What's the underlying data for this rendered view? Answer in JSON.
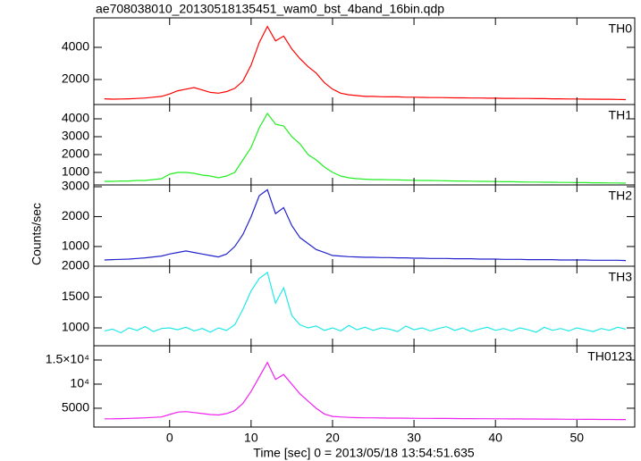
{
  "chart_data": [
    {
      "type": "line",
      "title": "ae708038010_20130518135451_wam0_bst_4band_16bin.qdp",
      "label": "TH0",
      "color": "#ff0000",
      "x": [
        -8,
        -7,
        -6,
        -5,
        -4,
        -3,
        -2,
        -1,
        0,
        1,
        2,
        3,
        4,
        5,
        6,
        7,
        8,
        9,
        10,
        11,
        12,
        13,
        14,
        15,
        16,
        17,
        18,
        19,
        20,
        21,
        22,
        23,
        24,
        25,
        26,
        27,
        28,
        29,
        30,
        31,
        32,
        33,
        34,
        35,
        36,
        37,
        38,
        39,
        40,
        41,
        42,
        43,
        44,
        45,
        46,
        47,
        48,
        49,
        50,
        51,
        52,
        53,
        54,
        55,
        56
      ],
      "values": [
        800,
        780,
        790,
        800,
        820,
        850,
        900,
        950,
        1100,
        1300,
        1400,
        1500,
        1350,
        1200,
        1150,
        1250,
        1450,
        1900,
        2900,
        4300,
        5300,
        4400,
        4700,
        3900,
        3300,
        2800,
        2400,
        1800,
        1400,
        1150,
        1050,
        1000,
        950,
        950,
        930,
        920,
        920,
        900,
        900,
        890,
        880,
        880,
        870,
        860,
        860,
        850,
        850,
        840,
        840,
        830,
        830,
        820,
        820,
        810,
        810,
        800,
        800,
        790,
        790,
        780,
        780,
        770,
        770,
        760,
        750
      ],
      "xlim": [
        -9.3,
        57.1
      ],
      "ylim": [
        444,
        5833
      ],
      "yticks": [
        2000,
        4000
      ]
    },
    {
      "type": "line",
      "label": "TH1",
      "color": "#22ee22",
      "x": [
        -8,
        -7,
        -6,
        -5,
        -4,
        -3,
        -2,
        -1,
        0,
        1,
        2,
        3,
        4,
        5,
        6,
        7,
        8,
        9,
        10,
        11,
        12,
        13,
        14,
        15,
        16,
        17,
        18,
        19,
        20,
        21,
        22,
        23,
        24,
        25,
        26,
        27,
        28,
        29,
        30,
        31,
        32,
        33,
        34,
        35,
        36,
        37,
        38,
        39,
        40,
        41,
        42,
        43,
        44,
        45,
        46,
        47,
        48,
        49,
        50,
        51,
        52,
        53,
        54,
        55,
        56
      ],
      "values": [
        500,
        500,
        520,
        520,
        550,
        550,
        600,
        650,
        900,
        1000,
        1000,
        950,
        850,
        800,
        700,
        800,
        1000,
        1700,
        2400,
        3500,
        4300,
        3700,
        3600,
        3000,
        2600,
        2000,
        1700,
        1300,
        1000,
        800,
        700,
        650,
        620,
        600,
        600,
        590,
        580,
        570,
        560,
        550,
        550,
        540,
        530,
        520,
        520,
        510,
        500,
        500,
        490,
        480,
        480,
        470,
        460,
        460,
        450,
        450,
        440,
        440,
        430,
        430,
        420,
        420,
        410,
        410,
        400
      ],
      "xlim": [
        -9.3,
        57.1
      ],
      "ylim": [
        300,
        4800
      ],
      "yticks": [
        1000,
        2000,
        3000,
        4000
      ]
    },
    {
      "type": "line",
      "label": "TH2",
      "ylabel": "Counts/sec",
      "color": "#2222cc",
      "x": [
        -8,
        -7,
        -6,
        -5,
        -4,
        -3,
        -2,
        -1,
        0,
        1,
        2,
        3,
        4,
        5,
        6,
        7,
        8,
        9,
        10,
        11,
        12,
        13,
        14,
        15,
        16,
        17,
        18,
        19,
        20,
        21,
        22,
        23,
        24,
        25,
        26,
        27,
        28,
        29,
        30,
        31,
        32,
        33,
        34,
        35,
        36,
        37,
        38,
        39,
        40,
        41,
        42,
        43,
        44,
        45,
        46,
        47,
        48,
        49,
        50,
        51,
        52,
        53,
        54,
        55,
        56
      ],
      "values": [
        550,
        560,
        570,
        580,
        600,
        620,
        650,
        680,
        750,
        800,
        850,
        800,
        750,
        700,
        650,
        750,
        1000,
        1400,
        2000,
        2700,
        2900,
        2100,
        2300,
        1700,
        1300,
        1100,
        900,
        800,
        700,
        680,
        660,
        650,
        640,
        640,
        630,
        630,
        620,
        620,
        610,
        610,
        600,
        600,
        600,
        590,
        590,
        590,
        580,
        580,
        580,
        570,
        570,
        570,
        560,
        560,
        560,
        560,
        550,
        550,
        550,
        550,
        540,
        540,
        540,
        540,
        530
      ],
      "xlim": [
        -9.3,
        57.1
      ],
      "ylim": [
        340,
        3060
      ],
      "yticks": [
        1000,
        2000,
        3000
      ]
    },
    {
      "type": "line",
      "label": "TH3",
      "color": "#22e8e8",
      "x": [
        -8,
        -7,
        -6,
        -5,
        -4,
        -3,
        -2,
        -1,
        0,
        1,
        2,
        3,
        4,
        5,
        6,
        7,
        8,
        9,
        10,
        11,
        12,
        13,
        14,
        15,
        16,
        17,
        18,
        19,
        20,
        21,
        22,
        23,
        24,
        25,
        26,
        27,
        28,
        29,
        30,
        31,
        32,
        33,
        34,
        35,
        36,
        37,
        38,
        39,
        40,
        41,
        42,
        43,
        44,
        45,
        46,
        47,
        48,
        49,
        50,
        51,
        52,
        53,
        54,
        55,
        56
      ],
      "values": [
        950,
        980,
        920,
        1000,
        960,
        1020,
        940,
        990,
        1000,
        970,
        1010,
        950,
        990,
        930,
        1000,
        960,
        1050,
        1300,
        1600,
        1800,
        1900,
        1400,
        1650,
        1200,
        1050,
        1000,
        1030,
        960,
        1000,
        950,
        1040,
        970,
        1010,
        960,
        1000,
        980,
        940,
        1030,
        970,
        1000,
        950,
        990,
        1020,
        960,
        1000,
        940,
        980,
        1010,
        960,
        990,
        950,
        1000,
        970,
        930,
        1010,
        960,
        990,
        950,
        1000,
        970,
        940,
        990,
        960,
        1010,
        980
      ],
      "xlim": [
        -9.3,
        57.1
      ],
      "ylim": [
        710,
        2000
      ],
      "yticks": [
        1000,
        1500,
        2000
      ]
    },
    {
      "type": "line",
      "label": "TH0123",
      "xlabel": "Time [sec] 0 = 2013/05/18 13:54:51.635",
      "color": "#ee22ee",
      "x": [
        -8,
        -7,
        -6,
        -5,
        -4,
        -3,
        -2,
        -1,
        0,
        1,
        2,
        3,
        4,
        5,
        6,
        7,
        8,
        9,
        10,
        11,
        12,
        13,
        14,
        15,
        16,
        17,
        18,
        19,
        20,
        21,
        22,
        23,
        24,
        25,
        26,
        27,
        28,
        29,
        30,
        31,
        32,
        33,
        34,
        35,
        36,
        37,
        38,
        39,
        40,
        41,
        42,
        43,
        44,
        45,
        46,
        47,
        48,
        49,
        50,
        51,
        52,
        53,
        54,
        55,
        56
      ],
      "values": [
        2800,
        2800,
        2850,
        2900,
        2950,
        3000,
        3100,
        3200,
        3700,
        4200,
        4300,
        4100,
        3900,
        3700,
        3600,
        3900,
        4500,
        6000,
        8500,
        11500,
        14500,
        11000,
        12000,
        10000,
        8000,
        6500,
        5000,
        3800,
        3300,
        3200,
        3100,
        3050,
        3000,
        3000,
        2980,
        2960,
        2950,
        2940,
        2920,
        2900,
        2900,
        2880,
        2870,
        2860,
        2850,
        2840,
        2830,
        2820,
        2810,
        2800,
        2790,
        2780,
        2770,
        2760,
        2750,
        2740,
        2730,
        2720,
        2710,
        2700,
        2690,
        2680,
        2670,
        2660,
        2650
      ],
      "xlim": [
        -9.3,
        57.1
      ],
      "ylim": [
        1100,
        17960
      ],
      "yticks": [
        5000,
        {
          "value": 10000,
          "label": "10⁴"
        },
        {
          "value": 15000,
          "label": "1.5×10⁴"
        }
      ],
      "xticks": [
        0,
        10,
        20,
        30,
        40,
        50
      ]
    }
  ]
}
